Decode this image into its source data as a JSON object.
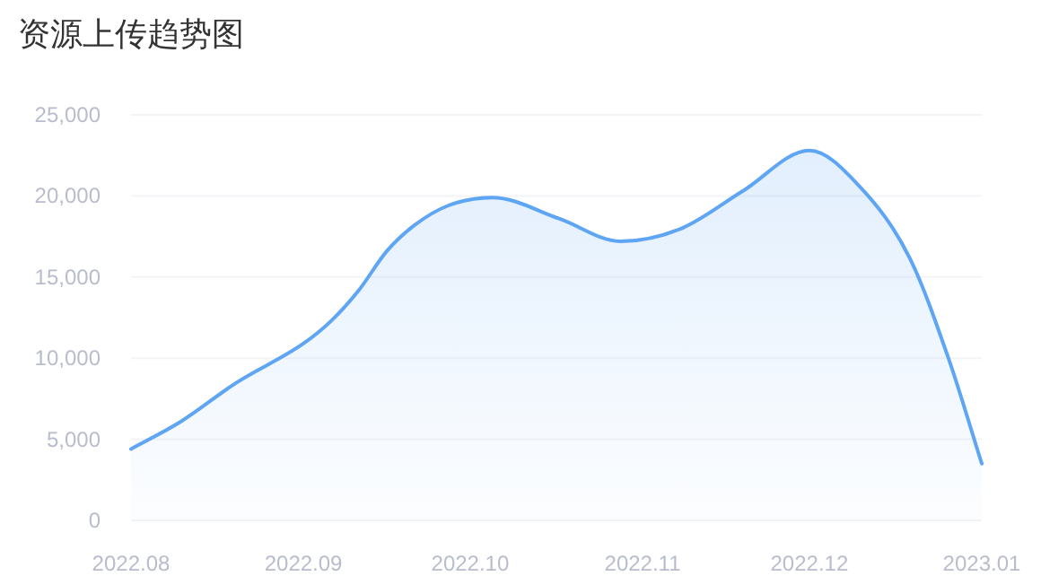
{
  "chart_data": {
    "type": "area",
    "title": "资源上传趋势图",
    "x": [
      "2022-08-01",
      "2022-08-10",
      "2022-08-20",
      "2022-09-01",
      "2022-09-06",
      "2022-09-11",
      "2022-09-16",
      "2022-09-21",
      "2022-09-27",
      "2022-10-05",
      "2022-10-17",
      "2022-10-28",
      "2022-11-08",
      "2022-11-19",
      "2022-12-01",
      "2022-12-10",
      "2022-12-19",
      "2022-12-26",
      "2023-01-01"
    ],
    "values": [
      4400,
      6100,
      8500,
      10900,
      12300,
      14200,
      16600,
      18200,
      19400,
      19900,
      18600,
      17200,
      18000,
      20300,
      22800,
      20600,
      16200,
      10000,
      3500
    ],
    "color": "#5ea5f4",
    "xlim": [
      "2022-08",
      "2023-01"
    ],
    "xticks": [
      {
        "value": "2022-08",
        "label": "2022.08"
      },
      {
        "value": "2022-09",
        "label": "2022.09"
      },
      {
        "value": "2022-10",
        "label": "2022.10"
      },
      {
        "value": "2022-11",
        "label": "2022.11"
      },
      {
        "value": "2022-12",
        "label": "2022.12"
      },
      {
        "value": "2023-01",
        "label": "2023.01"
      }
    ],
    "ylim": [
      0,
      25000
    ],
    "yticks": [
      {
        "value": 0,
        "label": "0"
      },
      {
        "value": 5000,
        "label": "5,000"
      },
      {
        "value": 10000,
        "label": "10,000"
      },
      {
        "value": 15000,
        "label": "15,000"
      },
      {
        "value": 20000,
        "label": "20,000"
      },
      {
        "value": 25000,
        "label": "25,000"
      }
    ],
    "grid": "y"
  }
}
